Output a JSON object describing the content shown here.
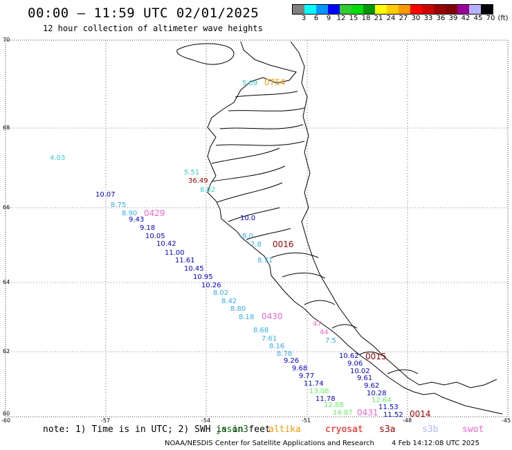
{
  "header": {
    "title": "00:00 – 11:59 UTC 02/01/2025",
    "subtitle": "12 hour collection of altimeter wave heights"
  },
  "colorbar": {
    "colors": [
      "#808080",
      "#00ffff",
      "#0096ff",
      "#0000ff",
      "#33cc33",
      "#00dd00",
      "#009600",
      "#ffff00",
      "#ffcc00",
      "#ff9900",
      "#ff0000",
      "#cc0000",
      "#990000",
      "#800000",
      "#990099",
      "#b3b3ff",
      "#000000"
    ],
    "labels": [
      "3",
      "6",
      "9",
      "12",
      "15",
      "18",
      "21",
      "24",
      "27",
      "30",
      "33",
      "36",
      "39",
      "42",
      "45",
      "70",
      "(ft)"
    ]
  },
  "axes": {
    "lat_labels": [
      "70",
      "68",
      "66",
      "64",
      "62",
      "60"
    ],
    "lon_labels": [
      "-60",
      "-57",
      "-54",
      "-51",
      "-48",
      "-45"
    ]
  },
  "observations": [
    {
      "text": "5.09",
      "color": "#33cccc"
    },
    {
      "text": "4.03",
      "color": "#33cccc"
    },
    {
      "text": "5.51",
      "color": "#33cccc"
    },
    {
      "text": "36.49",
      "color": "#990000"
    },
    {
      "text": "8.02",
      "color": "#33cccc"
    },
    {
      "text": "10.07",
      "color": "#0000cc"
    },
    {
      "text": "8.75",
      "color": "#33aaee"
    },
    {
      "text": "8.90",
      "color": "#33aaee"
    },
    {
      "text": "9.43",
      "color": "#0000cc"
    },
    {
      "text": "9.18",
      "color": "#0000cc"
    },
    {
      "text": "10.05",
      "color": "#0000cc"
    },
    {
      "text": "10.42",
      "color": "#0000cc"
    },
    {
      "text": "11.00",
      "color": "#0000cc"
    },
    {
      "text": "11.61",
      "color": "#0000cc"
    },
    {
      "text": "10.45",
      "color": "#0000cc"
    },
    {
      "text": "10.95",
      "color": "#0000cc"
    },
    {
      "text": "10.26",
      "color": "#0000cc"
    },
    {
      "text": "8.02",
      "color": "#33aaee"
    },
    {
      "text": "8.42",
      "color": "#33aaee"
    },
    {
      "text": "8.80",
      "color": "#33aaee"
    },
    {
      "text": "8.18",
      "color": "#33aaee"
    },
    {
      "text": "8.68",
      "color": "#33aaee"
    },
    {
      "text": "7.61",
      "color": "#33aaee"
    },
    {
      "text": "8.16",
      "color": "#33aaee"
    },
    {
      "text": "8.78",
      "color": "#33aaee"
    },
    {
      "text": "9.26",
      "color": "#0000cc"
    },
    {
      "text": "9.68",
      "color": "#0000cc"
    },
    {
      "text": "9.77",
      "color": "#0000cc"
    },
    {
      "text": "11.74",
      "color": "#0000cc"
    },
    {
      "text": "13.08",
      "color": "#66ee66"
    },
    {
      "text": "11.78",
      "color": "#0000cc"
    },
    {
      "text": "12.88",
      "color": "#66ee66"
    },
    {
      "text": "14.87",
      "color": "#66ee66"
    },
    {
      "text": "10.0",
      "color": "#0000cc"
    },
    {
      "text": "8.0",
      "color": "#33aaee"
    },
    {
      "text": "7.8",
      "color": "#33aaee"
    },
    {
      "text": "8.71",
      "color": "#33aaee"
    },
    {
      "text": "10.62",
      "color": "#0000cc"
    },
    {
      "text": "9.06",
      "color": "#0000cc"
    },
    {
      "text": "10.02",
      "color": "#0000cc"
    },
    {
      "text": "9.61",
      "color": "#0000cc"
    },
    {
      "text": "9.62",
      "color": "#0000cc"
    },
    {
      "text": "10.28",
      "color": "#0000cc"
    },
    {
      "text": "12.64",
      "color": "#66ee66"
    },
    {
      "text": "11.53",
      "color": "#0000cc"
    },
    {
      "text": "11.52",
      "color": "#0000cc"
    },
    {
      "text": "47",
      "color": "#ee66cc"
    },
    {
      "text": "44",
      "color": "#ee66cc"
    },
    {
      "text": "7.5",
      "color": "#33aaee"
    }
  ],
  "track_times": [
    {
      "text": "0754",
      "color": "#ff9900"
    },
    {
      "text": "0429",
      "color": "#ee66cc"
    },
    {
      "text": "0016",
      "color": "#990000"
    },
    {
      "text": "0430",
      "color": "#ee66cc"
    },
    {
      "text": "0015",
      "color": "#990000"
    },
    {
      "text": "0431",
      "color": "#ee66cc"
    },
    {
      "text": "0014",
      "color": "#990000"
    }
  ],
  "note": "note: 1) Time is in UTC; 2) SWH is in feet",
  "satellites": [
    {
      "name": "jason3",
      "color": "#006600"
    },
    {
      "name": "altika",
      "color": "#ff9900"
    },
    {
      "name": "cryosat",
      "color": "#ff0000"
    },
    {
      "name": "s3a",
      "color": "#990000"
    },
    {
      "name": "s3b",
      "color": "#b3b3ff"
    },
    {
      "name": "swot",
      "color": "#ee66cc"
    }
  ],
  "footer": {
    "credit": "NOAA/NESDIS Center for Satellite Applications and Research",
    "timestamp": "4 Feb 14:12:08 UTC 2025"
  }
}
